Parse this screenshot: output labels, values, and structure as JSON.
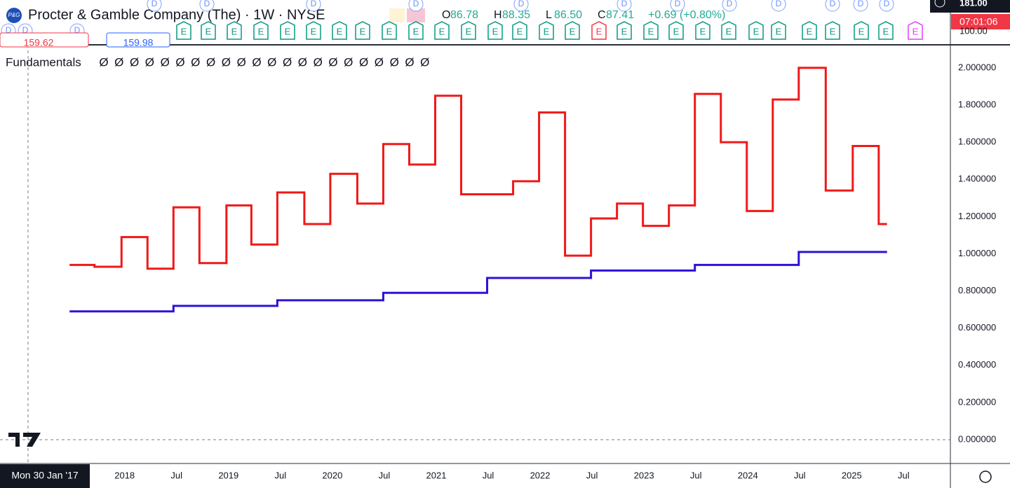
{
  "header": {
    "symbol": "Procter & Gamble Company (The) · 1W · NYSE",
    "logo": "P&G",
    "ohlc": [
      {
        "label": "O",
        "value": "86.78"
      },
      {
        "label": "H",
        "value": "88.35"
      },
      {
        "label": "L",
        "value": "86.50"
      },
      {
        "label": "C",
        "value": "87.41"
      }
    ],
    "change": "+0.69 (+0.80%)",
    "price_tags": {
      "left_red": "159.62",
      "left_blue": "159.98",
      "axis_top": "181.00",
      "axis_time": "07:01:06",
      "axis_low": "100.00"
    }
  },
  "events": {
    "earnings": [
      "E",
      "E",
      "E",
      "E",
      "E",
      "E",
      "E",
      "E",
      "E",
      "E",
      "E",
      "E",
      "E",
      "E",
      "E",
      "E",
      "E",
      "E",
      "E",
      "E",
      "E",
      "E",
      "E",
      "E",
      "E",
      "E",
      "E",
      "E",
      "E"
    ],
    "dividends": [
      "D",
      "D",
      "D",
      "D",
      "D",
      "D",
      "D",
      "D",
      "D",
      "D",
      "D",
      "D",
      "D",
      "D",
      "D"
    ]
  },
  "indicator": {
    "name": "Fundamentals",
    "values": [
      "Ø",
      "Ø",
      "Ø",
      "Ø",
      "Ø",
      "Ø",
      "Ø",
      "Ø",
      "Ø",
      "Ø",
      "Ø",
      "Ø",
      "Ø",
      "Ø",
      "Ø",
      "Ø",
      "Ø",
      "Ø",
      "Ø",
      "Ø",
      "Ø",
      "Ø"
    ]
  },
  "chart_data": {
    "type": "step",
    "crosshair_x_label": "Mon 30 Jan '17",
    "xlim": [
      2016.8,
      2025.95
    ],
    "xticks": [
      2018,
      {
        "value": 2018.5,
        "label": "Jul"
      },
      2019,
      {
        "value": 2019.5,
        "label": "Jul"
      },
      2020,
      {
        "value": 2020.5,
        "label": "Jul"
      },
      2021,
      {
        "value": 2021.5,
        "label": "Jul"
      },
      2022,
      {
        "value": 2022.5,
        "label": "Jul"
      },
      2023,
      {
        "value": 2023.5,
        "label": "Jul"
      },
      2024,
      {
        "value": 2024.5,
        "label": "Jul"
      },
      2025,
      {
        "value": 2025.5,
        "label": "Jul"
      }
    ],
    "ylim": [
      -0.128,
      2.124
    ],
    "yticks": [
      {
        "value": 0,
        "label": "0.000000"
      },
      {
        "value": 0.2,
        "label": "0.200000"
      },
      {
        "value": 0.4,
        "label": "0.400000"
      },
      {
        "value": 0.6,
        "label": "0.600000"
      },
      {
        "value": 0.8,
        "label": "0.800000"
      },
      {
        "value": 1,
        "label": "1.000000"
      },
      {
        "value": 1.2,
        "label": "1.200000"
      },
      {
        "value": 1.4,
        "label": "1.400000"
      },
      {
        "value": 1.6,
        "label": "1.600000"
      },
      {
        "value": 1.8,
        "label": "1.800000"
      },
      {
        "value": 2,
        "label": "2.000000"
      }
    ],
    "grid": true,
    "series": [
      {
        "color": "#f01818",
        "x": [
          2017.47,
          2017.71,
          2017.97,
          2018.22,
          2018.47,
          2018.72,
          2018.98,
          2019.22,
          2019.47,
          2019.73,
          2019.98,
          2020.24,
          2020.49,
          2020.74,
          2020.99,
          2021.24,
          2021.74,
          2021.99,
          2022.24,
          2022.49,
          2022.74,
          2022.99,
          2023.24,
          2023.49,
          2023.74,
          2023.99,
          2024.24,
          2024.49,
          2024.75,
          2025.01,
          2025.26,
          2025.34
        ],
        "values": [
          0.94,
          0.93,
          1.09,
          0.92,
          1.25,
          0.95,
          1.26,
          1.05,
          1.33,
          1.16,
          1.43,
          1.27,
          1.59,
          1.48,
          1.85,
          1.32,
          1.39,
          1.76,
          0.99,
          1.19,
          1.27,
          1.15,
          1.26,
          1.86,
          1.6,
          1.23,
          1.83,
          2.0,
          1.34,
          1.58,
          1.16,
          1.16
        ]
      },
      {
        "color": "#2c12d8",
        "x": [
          2017.47,
          2018.47,
          2019.47,
          2020.49,
          2021.49,
          2022.49,
          2023.49,
          2024.49,
          2025.34
        ],
        "values": [
          0.69,
          0.72,
          0.75,
          0.79,
          0.87,
          0.91,
          0.94,
          1.01,
          1.01
        ]
      }
    ]
  }
}
